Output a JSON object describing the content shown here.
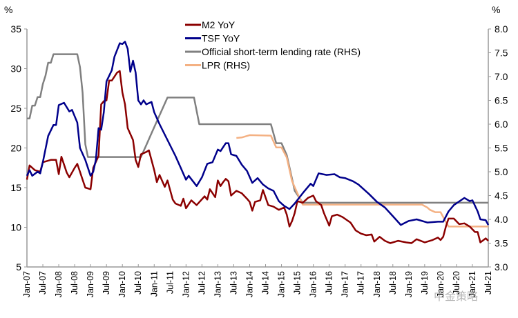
{
  "chart_data": {
    "type": "line",
    "left_axis": {
      "unit_label": "%",
      "ylim": [
        5,
        35
      ],
      "ticks": [
        "5",
        "10",
        "15",
        "20",
        "25",
        "30",
        "35"
      ]
    },
    "right_axis": {
      "unit_label": "%",
      "ylim": [
        3.0,
        8.0
      ],
      "ticks": [
        "3.0",
        "3.5",
        "4.0",
        "4.5",
        "5.0",
        "5.5",
        "6.0",
        "6.5",
        "7.0",
        "7.5",
        "8.0"
      ]
    },
    "x_ticks": [
      "Jan-07",
      "Jul-07",
      "Jan-08",
      "Jul-08",
      "Jan-09",
      "Jul-09",
      "Jan-10",
      "Jul-10",
      "Jan-11",
      "Jul-11",
      "Jan-12",
      "Jul-12",
      "Jan-13",
      "Jul-13",
      "Jan-14",
      "Jul-14",
      "Jan-15",
      "Jul-15",
      "Jan-16",
      "Jul-16",
      "Jan-17",
      "Jul-17",
      "Jan-18",
      "Jul-18",
      "Jan-19",
      "Jul-19",
      "Jan-20",
      "Jul-20",
      "Jan-21",
      "Jul-21"
    ],
    "grid": false,
    "legend_placement": "top-center",
    "series": [
      {
        "name": "M2 YoY",
        "axis": "left",
        "color": "#8B0000",
        "points": [
          [
            "2007-01",
            16.0
          ],
          [
            "2007-02",
            17.8
          ],
          [
            "2007-04",
            17.2
          ],
          [
            "2007-06",
            17.0
          ],
          [
            "2007-07",
            18.2
          ],
          [
            "2007-10",
            18.5
          ],
          [
            "2007-12",
            18.5
          ],
          [
            "2008-01",
            16.7
          ],
          [
            "2008-02",
            18.9
          ],
          [
            "2008-04",
            16.9
          ],
          [
            "2008-05",
            16.3
          ],
          [
            "2008-07",
            17.5
          ],
          [
            "2008-08",
            18.0
          ],
          [
            "2008-09",
            17.0
          ],
          [
            "2008-10",
            16.0
          ],
          [
            "2008-11",
            15.0
          ],
          [
            "2009-01",
            14.8
          ],
          [
            "2009-02",
            17.5
          ],
          [
            "2009-04",
            19.0
          ],
          [
            "2009-05",
            25.5
          ],
          [
            "2009-06",
            25.9
          ],
          [
            "2009-07",
            26.0
          ],
          [
            "2009-08",
            28.5
          ],
          [
            "2009-09",
            28.5
          ],
          [
            "2009-11",
            29.5
          ],
          [
            "2009-12",
            29.7
          ],
          [
            "2010-01",
            27.0
          ],
          [
            "2010-02",
            25.5
          ],
          [
            "2010-03",
            22.5
          ],
          [
            "2010-05",
            21.0
          ],
          [
            "2010-06",
            18.5
          ],
          [
            "2010-07",
            17.6
          ],
          [
            "2010-08",
            19.2
          ],
          [
            "2010-10",
            19.5
          ],
          [
            "2010-11",
            19.7
          ],
          [
            "2011-01",
            17.2
          ],
          [
            "2011-02",
            15.7
          ],
          [
            "2011-03",
            16.6
          ],
          [
            "2011-05",
            15.1
          ],
          [
            "2011-06",
            15.9
          ],
          [
            "2011-08",
            13.5
          ],
          [
            "2011-09",
            13.0
          ],
          [
            "2011-11",
            12.7
          ],
          [
            "2011-12",
            13.6
          ],
          [
            "2012-01",
            12.4
          ],
          [
            "2012-03",
            13.4
          ],
          [
            "2012-05",
            12.8
          ],
          [
            "2012-08",
            13.9
          ],
          [
            "2012-09",
            13.5
          ],
          [
            "2012-10",
            14.8
          ],
          [
            "2012-12",
            13.8
          ],
          [
            "2013-01",
            15.9
          ],
          [
            "2013-02",
            15.2
          ],
          [
            "2013-03",
            15.7
          ],
          [
            "2013-04",
            16.1
          ],
          [
            "2013-05",
            15.8
          ],
          [
            "2013-06",
            14.0
          ],
          [
            "2013-08",
            14.6
          ],
          [
            "2013-10",
            14.3
          ],
          [
            "2013-12",
            13.6
          ],
          [
            "2014-01",
            13.2
          ],
          [
            "2014-02",
            12.1
          ],
          [
            "2014-03",
            13.2
          ],
          [
            "2014-05",
            13.4
          ],
          [
            "2014-06",
            14.7
          ],
          [
            "2014-08",
            12.8
          ],
          [
            "2014-10",
            12.6
          ],
          [
            "2014-12",
            12.2
          ],
          [
            "2015-02",
            12.5
          ],
          [
            "2015-03",
            11.6
          ],
          [
            "2015-04",
            10.1
          ],
          [
            "2015-05",
            10.8
          ],
          [
            "2015-06",
            11.8
          ],
          [
            "2015-07",
            13.3
          ],
          [
            "2015-09",
            13.1
          ],
          [
            "2015-11",
            13.7
          ],
          [
            "2016-01",
            14.0
          ],
          [
            "2016-02",
            13.3
          ],
          [
            "2016-04",
            12.8
          ],
          [
            "2016-05",
            11.8
          ],
          [
            "2016-07",
            10.2
          ],
          [
            "2016-08",
            11.4
          ],
          [
            "2016-10",
            11.6
          ],
          [
            "2016-12",
            11.3
          ],
          [
            "2017-03",
            10.6
          ],
          [
            "2017-05",
            9.6
          ],
          [
            "2017-07",
            9.2
          ],
          [
            "2017-09",
            9.0
          ],
          [
            "2017-11",
            9.1
          ],
          [
            "2017-12",
            8.2
          ],
          [
            "2018-02",
            8.8
          ],
          [
            "2018-04",
            8.3
          ],
          [
            "2018-06",
            8.0
          ],
          [
            "2018-09",
            8.3
          ],
          [
            "2018-12",
            8.1
          ],
          [
            "2019-02",
            8.0
          ],
          [
            "2019-04",
            8.5
          ],
          [
            "2019-07",
            8.1
          ],
          [
            "2019-10",
            8.4
          ],
          [
            "2019-12",
            8.7
          ],
          [
            "2020-01",
            8.4
          ],
          [
            "2020-02",
            8.8
          ],
          [
            "2020-03",
            10.1
          ],
          [
            "2020-04",
            11.1
          ],
          [
            "2020-06",
            11.1
          ],
          [
            "2020-08",
            10.4
          ],
          [
            "2020-10",
            10.5
          ],
          [
            "2020-12",
            10.1
          ],
          [
            "2021-02",
            9.4
          ],
          [
            "2021-03",
            9.4
          ],
          [
            "2021-04",
            8.1
          ],
          [
            "2021-06",
            8.6
          ],
          [
            "2021-07",
            8.3
          ]
        ]
      },
      {
        "name": "TSF YoY",
        "axis": "left",
        "color": "#00008B",
        "points": [
          [
            "2007-01",
            16.5
          ],
          [
            "2007-02",
            17.2
          ],
          [
            "2007-03",
            16.5
          ],
          [
            "2007-05",
            17.0
          ],
          [
            "2007-06",
            16.8
          ],
          [
            "2007-07",
            18.2
          ],
          [
            "2007-09",
            21.5
          ],
          [
            "2007-11",
            22.9
          ],
          [
            "2007-12",
            22.9
          ],
          [
            "2008-01",
            25.4
          ],
          [
            "2008-03",
            25.7
          ],
          [
            "2008-05",
            24.6
          ],
          [
            "2008-06",
            24.8
          ],
          [
            "2008-08",
            23.2
          ],
          [
            "2008-09",
            20.0
          ],
          [
            "2008-11",
            18.5
          ],
          [
            "2009-01",
            16.5
          ],
          [
            "2009-02",
            17.0
          ],
          [
            "2009-03",
            18.5
          ],
          [
            "2009-04",
            22.5
          ],
          [
            "2009-05",
            22.3
          ],
          [
            "2009-06",
            24.5
          ],
          [
            "2009-07",
            28.4
          ],
          [
            "2009-09",
            29.8
          ],
          [
            "2009-10",
            31.5
          ],
          [
            "2009-12",
            33.2
          ],
          [
            "2010-01",
            33.1
          ],
          [
            "2010-02",
            33.4
          ],
          [
            "2010-03",
            32.5
          ],
          [
            "2010-04",
            29.6
          ],
          [
            "2010-05",
            31.0
          ],
          [
            "2010-06",
            29.5
          ],
          [
            "2010-07",
            26.0
          ],
          [
            "2010-08",
            25.5
          ],
          [
            "2010-09",
            26.0
          ],
          [
            "2010-10",
            25.5
          ],
          [
            "2010-12",
            25.8
          ],
          [
            "2011-01",
            24.5
          ],
          [
            "2011-03",
            23.0
          ],
          [
            "2011-06",
            21.0
          ],
          [
            "2011-09",
            19.0
          ],
          [
            "2011-11",
            17.5
          ],
          [
            "2012-01",
            16.0
          ],
          [
            "2012-02",
            16.5
          ],
          [
            "2012-05",
            15.2
          ],
          [
            "2012-07",
            16.3
          ],
          [
            "2012-09",
            18.0
          ],
          [
            "2012-11",
            18.2
          ],
          [
            "2013-01",
            19.8
          ],
          [
            "2013-02",
            19.6
          ],
          [
            "2013-04",
            20.6
          ],
          [
            "2013-05",
            20.6
          ],
          [
            "2013-06",
            19.2
          ],
          [
            "2013-08",
            19.0
          ],
          [
            "2013-10",
            17.9
          ],
          [
            "2013-12",
            17.1
          ],
          [
            "2014-02",
            15.6
          ],
          [
            "2014-04",
            16.2
          ],
          [
            "2014-06",
            15.4
          ],
          [
            "2014-08",
            14.9
          ],
          [
            "2014-10",
            14.6
          ],
          [
            "2014-12",
            13.3
          ],
          [
            "2015-02",
            12.7
          ],
          [
            "2015-04",
            12.3
          ],
          [
            "2015-06",
            13.0
          ],
          [
            "2015-09",
            14.3
          ],
          [
            "2015-12",
            15.5
          ],
          [
            "2016-01",
            15.2
          ],
          [
            "2016-03",
            16.8
          ],
          [
            "2016-06",
            16.6
          ],
          [
            "2016-09",
            16.7
          ],
          [
            "2016-11",
            16.3
          ],
          [
            "2017-01",
            16.2
          ],
          [
            "2017-04",
            15.8
          ],
          [
            "2017-06",
            15.4
          ],
          [
            "2017-10",
            14.2
          ],
          [
            "2018-01",
            13.2
          ],
          [
            "2018-04",
            12.5
          ],
          [
            "2018-07",
            11.4
          ],
          [
            "2018-10",
            10.3
          ],
          [
            "2019-01",
            10.8
          ],
          [
            "2019-04",
            11.0
          ],
          [
            "2019-08",
            10.6
          ],
          [
            "2019-12",
            10.7
          ],
          [
            "2020-02",
            10.7
          ],
          [
            "2020-04",
            12.0
          ],
          [
            "2020-06",
            12.8
          ],
          [
            "2020-10",
            13.7
          ],
          [
            "2020-12",
            13.3
          ],
          [
            "2021-01",
            13.4
          ],
          [
            "2021-03",
            12.0
          ],
          [
            "2021-04",
            11.0
          ],
          [
            "2021-06",
            10.9
          ],
          [
            "2021-07",
            10.3
          ]
        ]
      },
      {
        "name": "Official short-term lending rate (RHS)",
        "axis": "right",
        "color": "#808080",
        "points": [
          [
            "2007-01",
            6.12
          ],
          [
            "2007-02",
            6.12
          ],
          [
            "2007-03",
            6.39
          ],
          [
            "2007-04",
            6.39
          ],
          [
            "2007-05",
            6.57
          ],
          [
            "2007-06",
            6.57
          ],
          [
            "2007-07",
            6.84
          ],
          [
            "2007-08",
            7.02
          ],
          [
            "2007-09",
            7.29
          ],
          [
            "2007-10",
            7.29
          ],
          [
            "2007-11",
            7.47
          ],
          [
            "2008-08",
            7.47
          ],
          [
            "2008-09",
            7.2
          ],
          [
            "2008-10",
            6.66
          ],
          [
            "2008-11",
            5.58
          ],
          [
            "2008-12",
            5.31
          ],
          [
            "2010-08",
            5.31
          ],
          [
            "2010-10",
            5.56
          ],
          [
            "2010-12",
            5.81
          ],
          [
            "2011-02",
            6.06
          ],
          [
            "2011-04",
            6.31
          ],
          [
            "2011-06",
            6.56
          ],
          [
            "2012-04",
            6.56
          ],
          [
            "2012-06",
            6.0
          ],
          [
            "2014-09",
            6.0
          ],
          [
            "2014-11",
            5.6
          ],
          [
            "2015-01",
            5.6
          ],
          [
            "2015-03",
            5.35
          ],
          [
            "2015-05",
            4.85
          ],
          [
            "2015-06",
            4.6
          ],
          [
            "2015-09",
            4.35
          ],
          [
            "2021-07",
            4.35
          ]
        ]
      },
      {
        "name": "LPR (RHS)",
        "axis": "right",
        "color": "#F4B183",
        "points": [
          [
            "2013-08",
            5.71
          ],
          [
            "2013-10",
            5.72
          ],
          [
            "2014-01",
            5.77
          ],
          [
            "2014-09",
            5.76
          ],
          [
            "2014-11",
            5.51
          ],
          [
            "2015-01",
            5.51
          ],
          [
            "2015-03",
            5.3
          ],
          [
            "2015-05",
            4.8
          ],
          [
            "2015-07",
            4.55
          ],
          [
            "2015-09",
            4.31
          ],
          [
            "2019-06",
            4.31
          ],
          [
            "2019-08",
            4.25
          ],
          [
            "2019-09",
            4.2
          ],
          [
            "2019-11",
            4.15
          ],
          [
            "2020-01",
            4.15
          ],
          [
            "2020-02",
            4.05
          ],
          [
            "2020-04",
            3.85
          ],
          [
            "2021-07",
            3.85
          ]
        ]
      }
    ]
  },
  "watermark": "中金策略"
}
